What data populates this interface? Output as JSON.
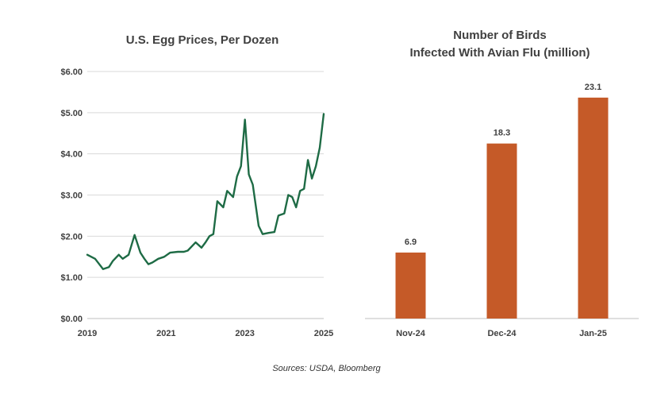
{
  "colors": {
    "line": "#1e6b45",
    "bar": "#c55a28",
    "grid": "#d9d9d9",
    "text": "#404040"
  },
  "source_note": "Sources: USDA, Bloomberg",
  "chart_data": [
    {
      "type": "line",
      "title": "U.S. Egg Prices, Per Dozen",
      "xlabel": "",
      "ylabel": "",
      "ylim": [
        0,
        6
      ],
      "xlim": [
        2019,
        2025
      ],
      "x_ticks": [
        "2019",
        "2021",
        "2023",
        "2025"
      ],
      "y_ticks": [
        "$0.00",
        "$1.00",
        "$2.00",
        "$3.00",
        "$4.00",
        "$5.00",
        "$6.00"
      ],
      "grid": true,
      "series": [
        {
          "x": [
            2019.0,
            2019.2,
            2019.4,
            2019.55,
            2019.65,
            2019.8,
            2019.9,
            2020.05,
            2020.2,
            2020.35,
            2020.45,
            2020.55,
            2020.65,
            2020.8,
            2020.95,
            2021.1,
            2021.3,
            2021.45,
            2021.55,
            2021.75,
            2021.9,
            2022.0,
            2022.1,
            2022.2,
            2022.3,
            2022.45,
            2022.55,
            2022.7,
            2022.8,
            2022.9,
            2023.0,
            2023.1,
            2023.2,
            2023.35,
            2023.45,
            2023.6,
            2023.75,
            2023.85,
            2024.0,
            2024.1,
            2024.2,
            2024.3,
            2024.4,
            2024.5,
            2024.6,
            2024.7,
            2024.8,
            2024.9,
            2025.0
          ],
          "y": [
            1.55,
            1.45,
            1.2,
            1.25,
            1.4,
            1.55,
            1.45,
            1.55,
            2.03,
            1.6,
            1.45,
            1.32,
            1.36,
            1.45,
            1.5,
            1.6,
            1.62,
            1.62,
            1.65,
            1.85,
            1.72,
            1.85,
            2.0,
            2.05,
            2.85,
            2.7,
            3.1,
            2.95,
            3.45,
            3.7,
            4.83,
            3.5,
            3.25,
            2.25,
            2.05,
            2.08,
            2.1,
            2.5,
            2.55,
            3.0,
            2.95,
            2.7,
            3.1,
            3.15,
            3.85,
            3.4,
            3.7,
            4.15,
            4.97
          ]
        }
      ]
    },
    {
      "type": "bar",
      "title": "Number of Birds Infected With Avian Flu (million)",
      "title_lines": [
        "Number of Birds",
        "Infected With Avian Flu (million)"
      ],
      "xlabel": "",
      "ylabel": "",
      "ylim": [
        0,
        25
      ],
      "categories": [
        "Nov-24",
        "Dec-24",
        "Jan-25"
      ],
      "values": [
        6.9,
        18.3,
        23.1
      ],
      "value_labels": [
        "6.9",
        "18.3",
        "23.1"
      ],
      "grid": false
    }
  ]
}
